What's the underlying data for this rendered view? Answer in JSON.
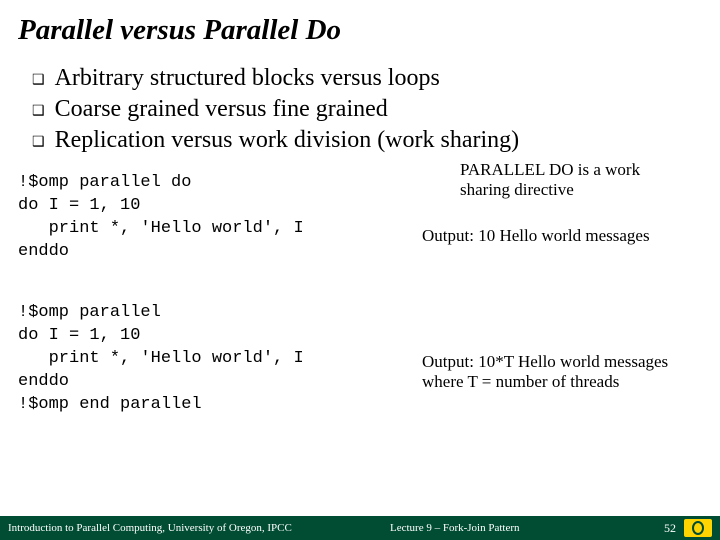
{
  "title": "Parallel versus Parallel Do",
  "bullets": [
    "Arbitrary structured blocks versus loops",
    "Coarse grained versus fine grained",
    "Replication versus work division (work sharing)"
  ],
  "bullet_marker": "❑",
  "code1": "!$omp parallel do\ndo I = 1, 10\n   print *, 'Hello world', I\nenddo",
  "code2": "!$omp parallel\ndo I = 1, 10\n   print *, 'Hello world', I\nenddo\n!$omp end parallel",
  "anno1": "PARALLEL DO is a work sharing directive",
  "anno2": "Output: 10 Hello world messages",
  "anno3": "Output: 10*T Hello world messages where T = number of threads",
  "footer": {
    "left": "Introduction to Parallel Computing, University of Oregon, IPCC",
    "center": "Lecture 9 – Fork-Join Pattern",
    "page": "52"
  },
  "colors": {
    "footer_bg": "#004d33",
    "logo_bg": "#ffd400"
  }
}
